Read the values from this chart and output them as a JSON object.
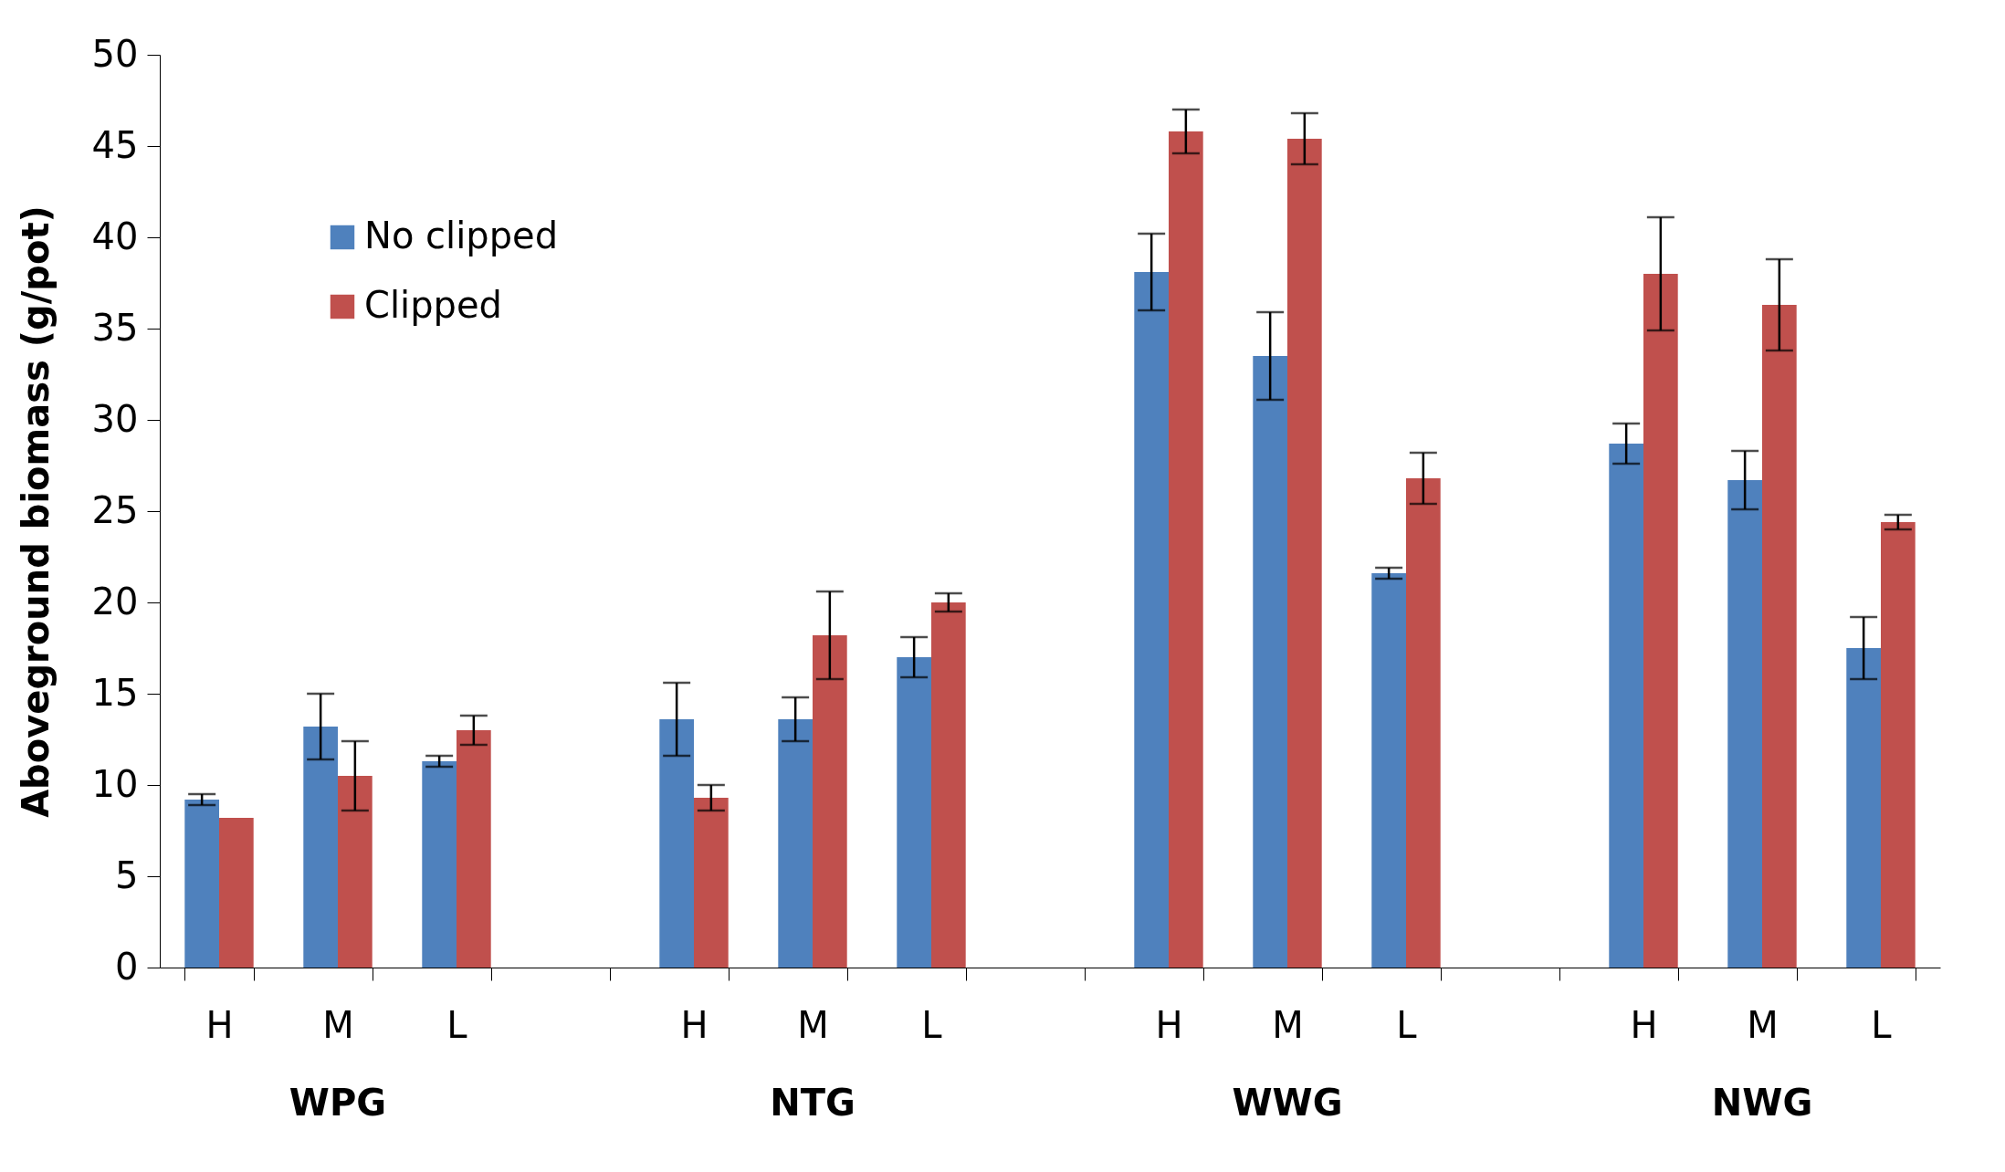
{
  "chart_data": {
    "type": "bar",
    "ylabel": "Aboveground biomass (g/pot)",
    "categories": [
      "H",
      "M",
      "L",
      null,
      "H",
      "M",
      "L",
      null,
      "H",
      "M",
      "L",
      null,
      "H",
      "M",
      "L"
    ],
    "series": [
      {
        "name": "No clipped",
        "color": "#4f81bd",
        "values": [
          9.2,
          13.2,
          11.3,
          null,
          13.6,
          13.6,
          17.0,
          null,
          38.1,
          33.5,
          21.6,
          null,
          28.7,
          26.7,
          17.5
        ],
        "errors": [
          0.3,
          1.8,
          0.3,
          null,
          2.0,
          1.2,
          1.1,
          null,
          2.1,
          2.4,
          0.3,
          null,
          1.1,
          1.6,
          1.7
        ]
      },
      {
        "name": "Clipped",
        "color": "#c0504d",
        "values": [
          8.2,
          10.5,
          13.0,
          null,
          9.3,
          18.2,
          20.0,
          null,
          45.8,
          45.4,
          26.8,
          null,
          38.0,
          36.3,
          24.4
        ],
        "errors": [
          null,
          1.9,
          0.8,
          null,
          0.7,
          2.4,
          0.5,
          null,
          1.2,
          1.4,
          1.4,
          null,
          3.1,
          2.5,
          0.4
        ]
      }
    ],
    "annotations": [
      "WPG",
      "NTG",
      "WWG",
      "NWG"
    ],
    "ylim": [
      0,
      50
    ],
    "yticks": [
      0,
      5,
      10,
      15,
      20,
      25,
      30,
      35,
      40,
      45,
      50
    ],
    "grid": false,
    "legend": "top left"
  }
}
